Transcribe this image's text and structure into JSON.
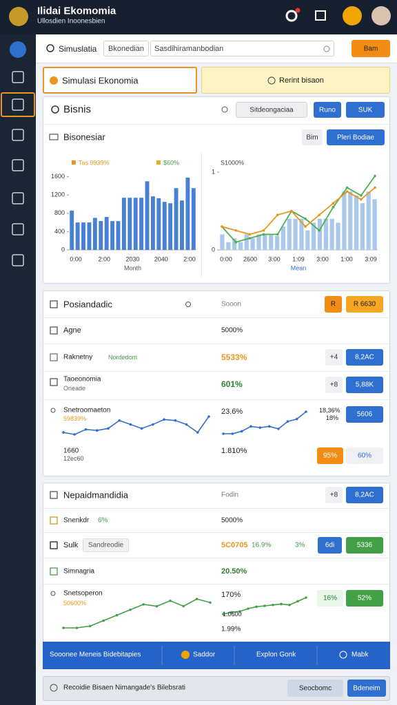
{
  "header": {
    "title": "Ilidai Ekomomia",
    "subtitle": "Ullosdien Inoonesbien"
  },
  "toolbar": {
    "search": "Simuslatia",
    "filter": "Bkonedian",
    "input": "Sasdihiramanbodian",
    "button": "Bam"
  },
  "tabs": [
    "Simulasi Ekonomia",
    "Rerint bisaon"
  ],
  "business": {
    "title": "Bisnis",
    "select": "Sitdeongaciaa",
    "run": "Runo",
    "action": "SUK",
    "subtitle": "Bisonesiar",
    "small": "Bim",
    "primary": "Pleri Bodiae"
  },
  "charts": [
    {
      "type": "bar",
      "legend": [
        "Tas 9939%",
        "$60%"
      ],
      "legend_colors": [
        "#e8961e",
        "#e8b020"
      ],
      "color": "#4a80d4",
      "ylim": [
        0,
        1700
      ],
      "yticks": [
        0,
        400,
        800,
        1200,
        1600
      ],
      "x_labels": [
        "0:00",
        "2:00",
        "2030",
        "2040",
        "2:00"
      ],
      "x_title": "Month",
      "values": [
        860,
        600,
        600,
        600,
        700,
        630,
        720,
        630,
        630,
        1140,
        1140,
        1140,
        1140,
        1500,
        1170,
        1130,
        1050,
        1020,
        1350,
        1080,
        1580,
        1350
      ]
    },
    {
      "type": "bar_line",
      "title": "S1000%",
      "color": "#a9c8ee",
      "ylim": [
        0,
        1
      ],
      "yticks": [
        0,
        1
      ],
      "x_labels": [
        "0:00",
        "2600",
        "3:00",
        "1:09",
        "3:00",
        "1:00",
        "3:09"
      ],
      "x_title": "Mean",
      "values": [
        0.2,
        0.1,
        0.15,
        0.1,
        0.2,
        0.15,
        0.2,
        0.2,
        0.2,
        0.18,
        0.3,
        0.4,
        0.4,
        0.4,
        0.25,
        0.35,
        0.4,
        0.4,
        0.4,
        0.35,
        0.75,
        0.75,
        0.7,
        0.6,
        0.75,
        0.65
      ],
      "series": [
        {
          "color": "#4caf50",
          "values": [
            0.3,
            0.1,
            0.15,
            0.2,
            0.2,
            0.5,
            0.4,
            0.25,
            0.55,
            0.8,
            0.7,
            0.95
          ]
        },
        {
          "color": "#e8961e",
          "values": [
            0.3,
            0.25,
            0.2,
            0.25,
            0.45,
            0.5,
            0.3,
            0.45,
            0.6,
            0.75,
            0.65,
            0.8
          ]
        }
      ]
    }
  ],
  "panel_a": {
    "title": "Posiandadic",
    "meta": "Sooon",
    "btn_small": "R",
    "btn": "R 6630",
    "rows": [
      {
        "label": "Agne",
        "value": "5000%"
      },
      {
        "label": "Raknetny",
        "tag": "Nordedom",
        "value": "5533%",
        "badge": "+4",
        "button": "8,2AC"
      },
      {
        "label": "Taoeonomia",
        "note": "Oneade",
        "value": "601%",
        "badge": "+8",
        "button": "5,88K"
      }
    ],
    "trend": {
      "label": "Snetroomaeton",
      "sub": "59839%",
      "value": "23.6%",
      "side": "18,36%",
      "side_sub": "18%",
      "button": "5606",
      "color": "#2f6fd0",
      "line_a": [
        0.1,
        0.0,
        0.25,
        0.2,
        0.3,
        0.7,
        0.5,
        0.3,
        0.5,
        0.75,
        0.7,
        0.5,
        0.1,
        0.9
      ],
      "line_b": [
        0.1,
        0.1,
        0.2,
        0.4,
        0.35,
        0.4,
        0.3,
        0.6,
        0.7,
        1.0
      ]
    },
    "foot": {
      "label": "1660",
      "sub": "12ec60",
      "value": "1.810%",
      "warn": "95%",
      "button": "60%"
    }
  },
  "panel_b": {
    "title": "Nepaidmandidia",
    "meta": "Fodin",
    "badge": "+8",
    "button": "8,2AC",
    "rows": [
      {
        "label": "Snenkdr",
        "tag": "6%",
        "value": "5000%"
      },
      {
        "label": "Sulk",
        "tag": "Sandreodie",
        "value": "5C0705",
        "change": "16.9%",
        "delta": "3%",
        "button": "6di",
        "button2": "5336"
      },
      {
        "label": "Simnagria",
        "value": "20.50%"
      }
    ],
    "trend": {
      "label": "Snetsoperon",
      "sub": "50600%",
      "value": "170%",
      "mid": "1.0600",
      "low": "1.99%",
      "badge": "16%",
      "button": "52%",
      "color": "#43a047",
      "line_a": [
        0.1,
        0.1,
        0.15,
        0.3,
        0.45,
        0.6,
        0.75,
        0.7,
        0.85,
        0.7,
        0.9,
        0.8
      ],
      "line_b": [
        0.1,
        0.2,
        0.25,
        0.4,
        0.5,
        0.55,
        0.6,
        0.65,
        0.6,
        0.8,
        1.0
      ]
    }
  },
  "footer_bar": [
    "Sooonee Meneis Bidebitapies",
    "Saddor",
    "Explon Gonk",
    "Mabk"
  ],
  "bottom": {
    "text": "Recoidie Bisaen Nimangade's Bilebsrati",
    "secondary": "Seocbomc",
    "primary": "Bdeneim"
  }
}
